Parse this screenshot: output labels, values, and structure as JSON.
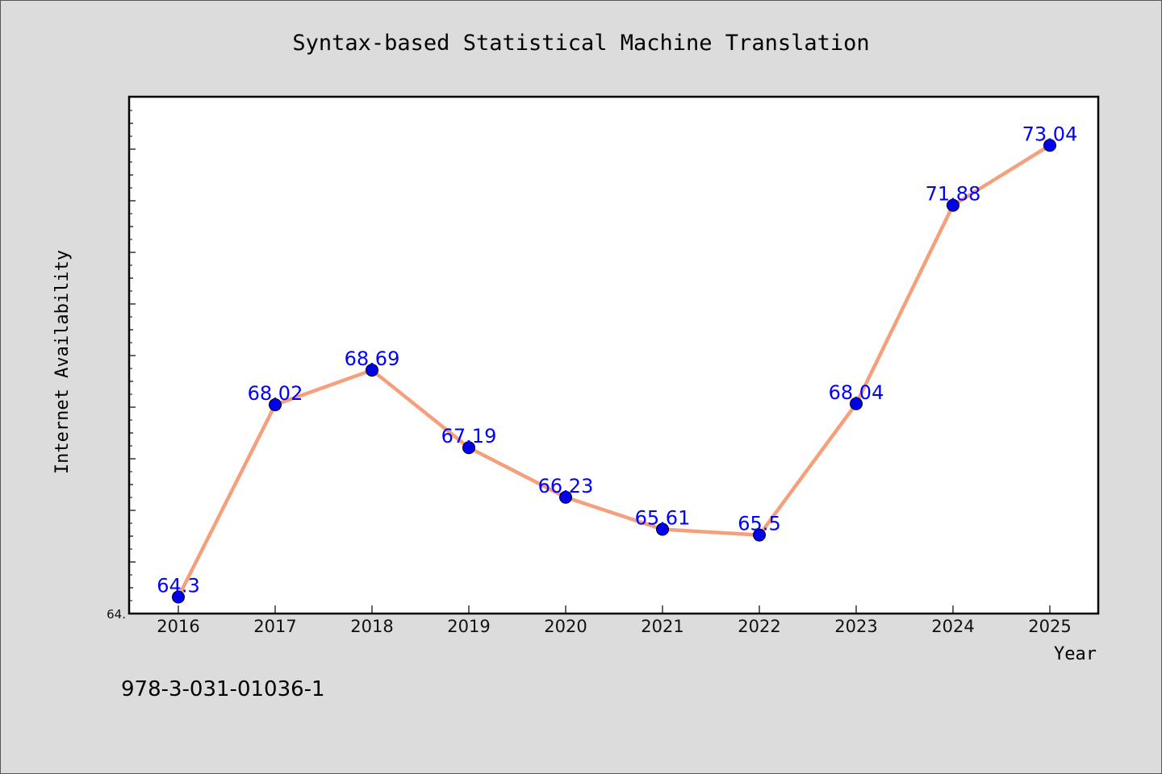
{
  "chart_data": {
    "type": "line",
    "title": "Syntax-based Statistical Machine Translation",
    "xlabel": "Year",
    "ylabel": "Internet Availability",
    "x": [
      "2016",
      "2017",
      "2018",
      "2019",
      "2020",
      "2021",
      "2022",
      "2023",
      "2024",
      "2025"
    ],
    "series": [
      {
        "values": [
          64.3,
          68.02,
          68.69,
          67.19,
          66.23,
          65.61,
          65.5,
          68.04,
          71.88,
          73.04
        ],
        "labels": [
          "64.3",
          "68.02",
          "68.69",
          "67.19",
          "66.23",
          "65.61",
          "65.5",
          "68.04",
          "71.88",
          "73.04"
        ]
      }
    ],
    "ytick_labels": [
      "64."
    ],
    "ylim": [
      63.98,
      73.98
    ],
    "grid": false,
    "legend": "none",
    "line_color": "#f4a07c",
    "marker_color": "#0000ee",
    "label_color": "#0000ff"
  },
  "footer": {
    "isbn": "978-3-031-01036-1"
  }
}
